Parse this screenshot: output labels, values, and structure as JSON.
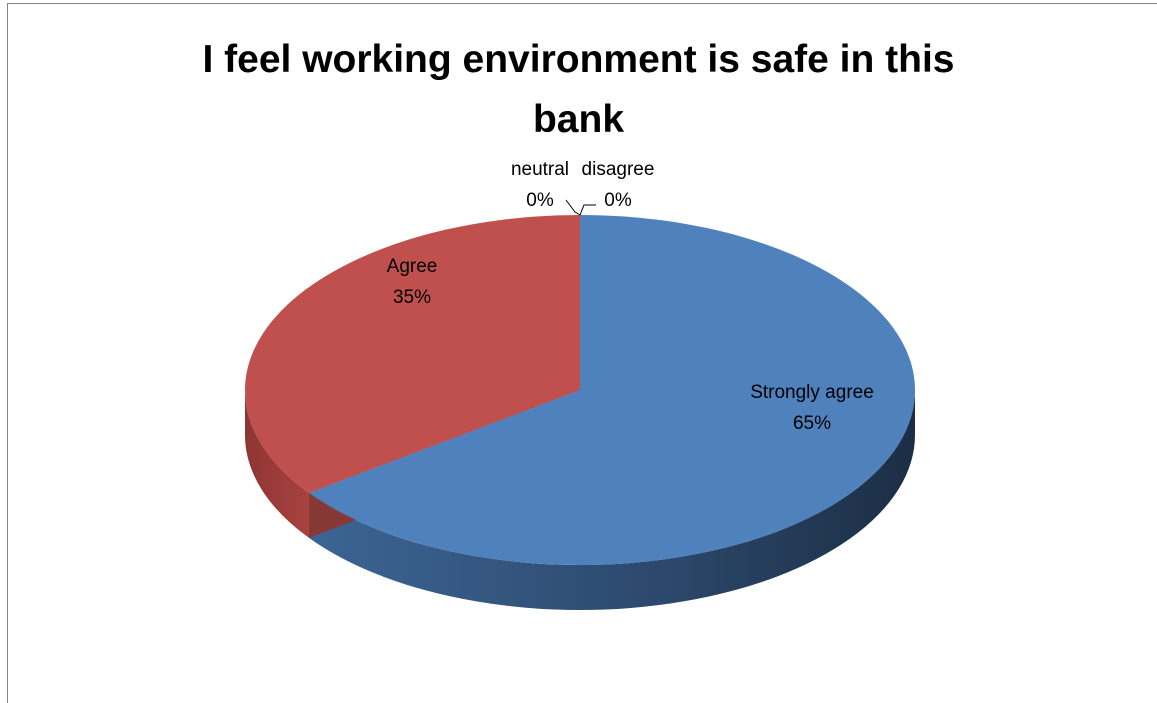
{
  "chart_data": {
    "type": "pie",
    "title": "I feel working environment is safe in this bank",
    "style": "3d",
    "slices": [
      {
        "label": "Strongly agree",
        "value": 65,
        "percent_label": "65%",
        "color": "#4F81BD"
      },
      {
        "label": "Agree",
        "value": 35,
        "percent_label": "35%",
        "color": "#C0504D"
      },
      {
        "label": "neutral",
        "value": 0,
        "percent_label": "0%",
        "color": "#9BBB59"
      },
      {
        "label": "disagree",
        "value": 0,
        "percent_label": "0%",
        "color": "#8064A2"
      }
    ],
    "legend": "none"
  }
}
